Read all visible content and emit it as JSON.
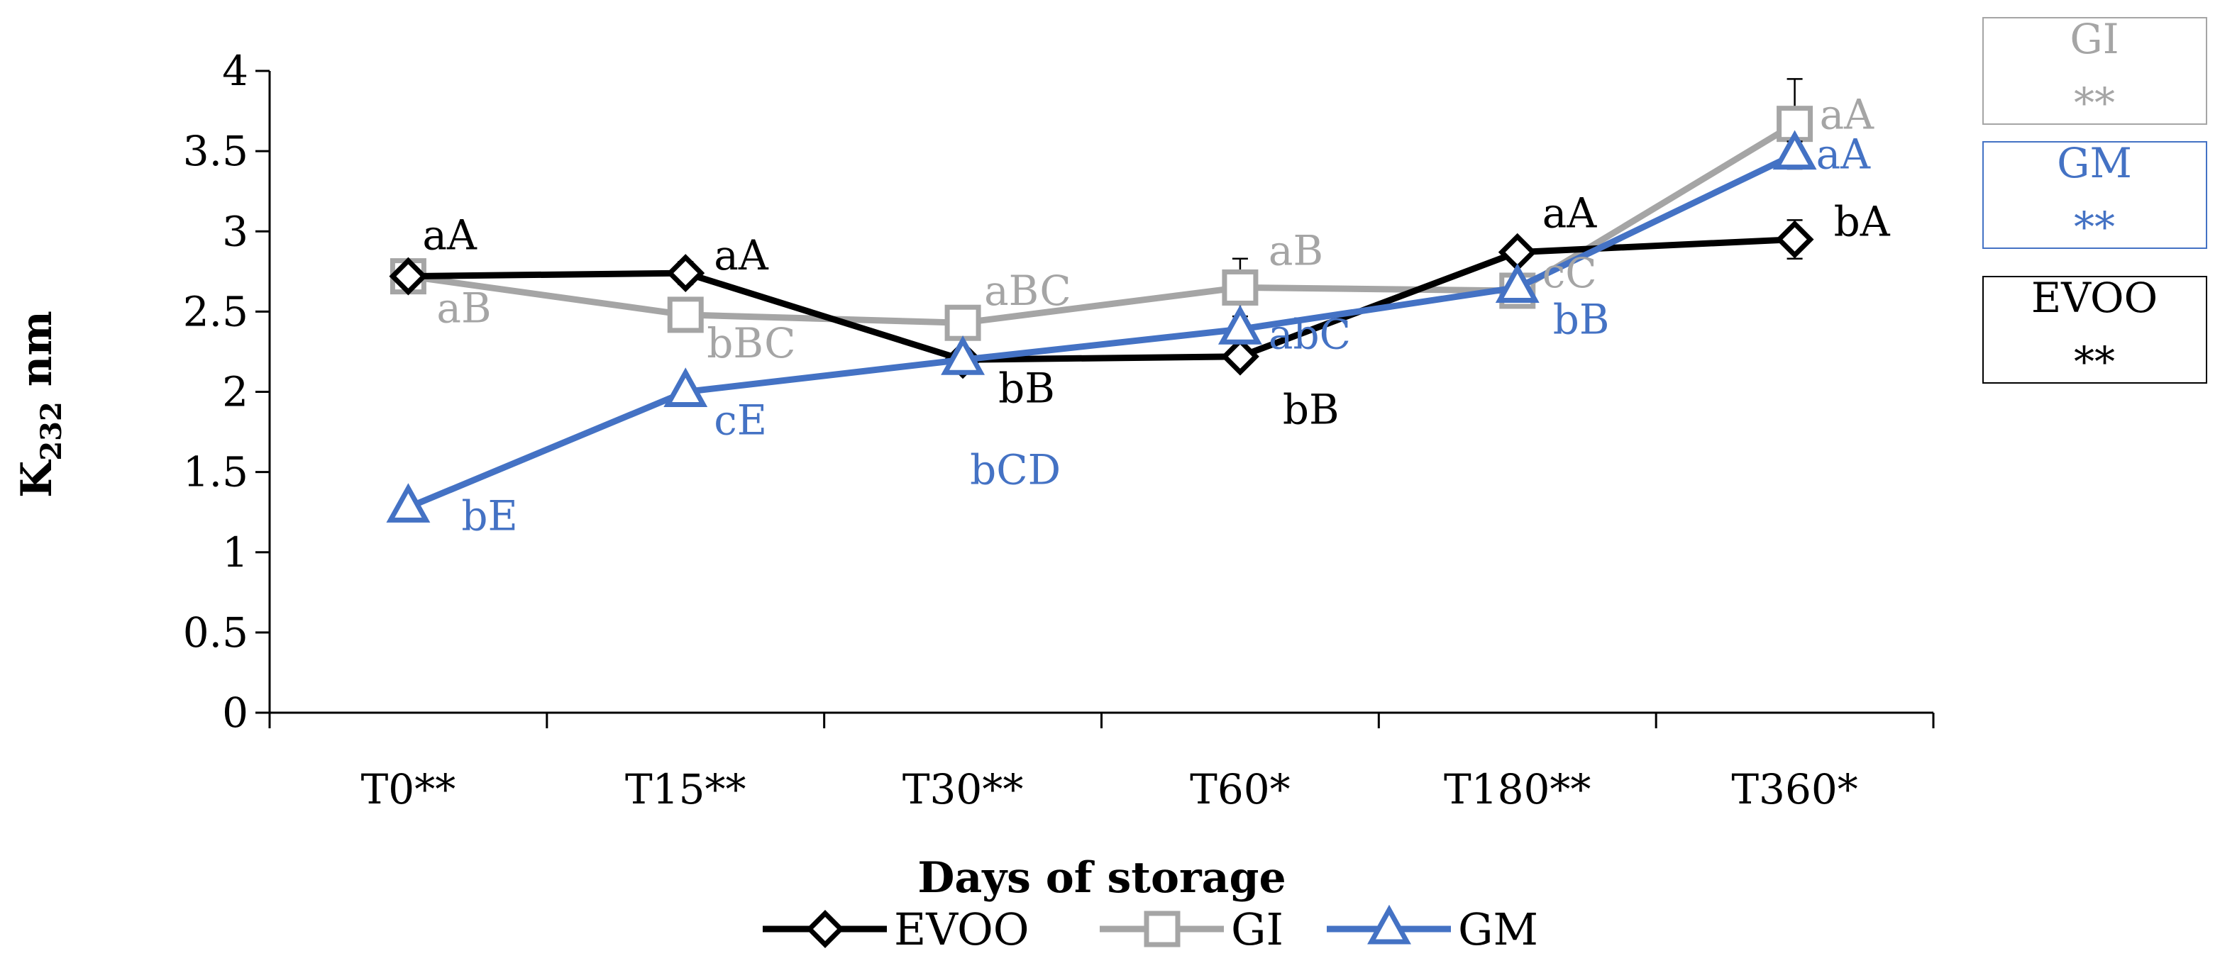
{
  "chart_data": {
    "type": "line",
    "ylabel_main": "K",
    "ylabel_sub": "232",
    "ylabel_unit": " nm",
    "xlabel": "Days of storage",
    "ylim": [
      0,
      4
    ],
    "yticks": [
      0,
      0.5,
      1,
      1.5,
      2,
      2.5,
      3,
      3.5,
      4
    ],
    "ytick_labels": [
      "0",
      "0.5",
      "1",
      "1.5",
      "2",
      "2.5",
      "3",
      "3.5",
      "4"
    ],
    "categories": [
      "T0**",
      "T15**",
      "T30**",
      "T60*",
      "T180**",
      "T360*"
    ],
    "series": [
      {
        "name": "EVOO",
        "color": "#000000",
        "marker": "diamond",
        "values": [
          2.72,
          2.74,
          2.2,
          2.22,
          2.87,
          2.95
        ],
        "errors": [
          0.04,
          0.07,
          0.04,
          0.05,
          0.06,
          0.12
        ],
        "letters": [
          "aA",
          "aA",
          "bB",
          "bB",
          "aA",
          "bA"
        ]
      },
      {
        "name": "GI",
        "color": "#a5a5a5",
        "marker": "square",
        "values": [
          2.72,
          2.48,
          2.43,
          2.65,
          2.63,
          3.67
        ],
        "errors": [
          0.04,
          0.08,
          0.07,
          0.18,
          0.04,
          0.28
        ],
        "letters": [
          "aB",
          "bBC",
          "aBC",
          "aB",
          "cC",
          "aA"
        ]
      },
      {
        "name": "GM",
        "color": "#4472c4",
        "marker": "triangle",
        "values": [
          1.28,
          2.0,
          2.2,
          2.39,
          2.65,
          3.48
        ],
        "errors": [
          0.02,
          0.02,
          0.03,
          0.03,
          0.05,
          0.08
        ],
        "letters": [
          "bE",
          "cE",
          "bCD",
          "abC",
          "bB",
          "aA"
        ]
      }
    ],
    "side_boxes": [
      {
        "name": "GI",
        "stars": "**",
        "color": "#a5a5a5"
      },
      {
        "name": "GM",
        "stars": "**",
        "color": "#4472c4"
      },
      {
        "name": "EVOO",
        "stars": "**",
        "color": "#000000"
      }
    ],
    "legend": [
      "EVOO",
      "GI",
      "GM"
    ],
    "legend_position": "bottom"
  }
}
